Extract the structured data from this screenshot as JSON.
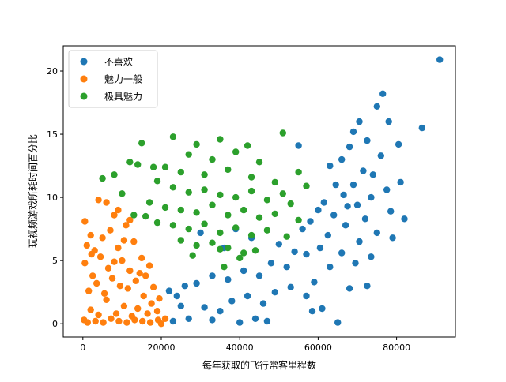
{
  "chart_data": {
    "type": "scatter",
    "title": "",
    "xlabel": "每年获取的飞行常客里程数",
    "ylabel": "玩视频游戏所耗时间百分比",
    "xlim": [
      -5000,
      95000
    ],
    "ylim": [
      -1.05,
      22
    ],
    "x_ticks": [
      0,
      20000,
      40000,
      60000,
      80000
    ],
    "y_ticks": [
      0,
      5,
      10,
      15,
      20
    ],
    "legend_position": "upper-left",
    "grid": false,
    "series": [
      {
        "name": "不喜欢",
        "color": "#1f77b4",
        "points": [
          [
            91000,
            20.9
          ],
          [
            86500,
            15.5
          ],
          [
            76500,
            18.2
          ],
          [
            75000,
            17.2
          ],
          [
            78000,
            16.0
          ],
          [
            70500,
            16.0
          ],
          [
            72500,
            14.5
          ],
          [
            68000,
            14.0
          ],
          [
            80500,
            14.2
          ],
          [
            66000,
            13.0
          ],
          [
            63000,
            12.5
          ],
          [
            74000,
            11.8
          ],
          [
            69000,
            11.0
          ],
          [
            81000,
            11.2
          ],
          [
            66500,
            10.2
          ],
          [
            73500,
            10.0
          ],
          [
            61500,
            9.6
          ],
          [
            70000,
            9.4
          ],
          [
            60000,
            9.0
          ],
          [
            78500,
            8.9
          ],
          [
            64000,
            8.6
          ],
          [
            72000,
            8.3
          ],
          [
            58000,
            8.1
          ],
          [
            82000,
            8.3
          ],
          [
            67000,
            7.8
          ],
          [
            56000,
            7.5
          ],
          [
            75000,
            7.2
          ],
          [
            62500,
            7.0
          ],
          [
            70500,
            6.5
          ],
          [
            79000,
            6.8
          ],
          [
            60500,
            6.0
          ],
          [
            66000,
            5.6
          ],
          [
            73500,
            5.3
          ],
          [
            57000,
            5.5
          ],
          [
            69500,
            4.8
          ],
          [
            63000,
            4.5
          ],
          [
            52000,
            4.5
          ],
          [
            48000,
            4.8
          ],
          [
            55000,
            14.1
          ],
          [
            45000,
            3.8
          ],
          [
            41000,
            4.2
          ],
          [
            37000,
            3.5
          ],
          [
            33000,
            3.8
          ],
          [
            29000,
            3.2
          ],
          [
            26000,
            3.0
          ],
          [
            24000,
            2.2
          ],
          [
            22000,
            2.6
          ],
          [
            25000,
            1.4
          ],
          [
            31000,
            1.3
          ],
          [
            35000,
            1.0
          ],
          [
            38000,
            1.8
          ],
          [
            42000,
            2.2
          ],
          [
            46000,
            1.6
          ],
          [
            49000,
            2.5
          ],
          [
            53000,
            2.9
          ],
          [
            57000,
            2.2
          ],
          [
            59000,
            3.3
          ],
          [
            47000,
            0.2
          ],
          [
            40000,
            0.1
          ],
          [
            44000,
            0.4
          ],
          [
            33000,
            0.3
          ],
          [
            27000,
            0.4
          ],
          [
            23000,
            0.2
          ],
          [
            65000,
            0.1
          ],
          [
            61000,
            1.2
          ],
          [
            68000,
            2.8
          ],
          [
            72500,
            3.0
          ],
          [
            58500,
            1.0
          ],
          [
            36000,
            6.0
          ],
          [
            30000,
            7.2
          ],
          [
            43000,
            6.8
          ],
          [
            50000,
            6.3
          ],
          [
            39000,
            7.5
          ],
          [
            54000,
            5.7
          ],
          [
            71500,
            12.1
          ],
          [
            76000,
            13.3
          ],
          [
            64500,
            11.0
          ],
          [
            67500,
            9.3
          ],
          [
            77500,
            10.6
          ],
          [
            69000,
            15.2
          ]
        ]
      },
      {
        "name": "魅力一般",
        "color": "#ff7f0e",
        "points": [
          [
            500,
            8.1
          ],
          [
            2000,
            7.0
          ],
          [
            4000,
            9.8
          ],
          [
            6000,
            9.6
          ],
          [
            8000,
            8.6
          ],
          [
            1000,
            6.2
          ],
          [
            3000,
            5.8
          ],
          [
            5000,
            6.8
          ],
          [
            7000,
            7.4
          ],
          [
            9000,
            6.0
          ],
          [
            11000,
            7.8
          ],
          [
            13000,
            6.5
          ],
          [
            15000,
            5.2
          ],
          [
            17000,
            4.6
          ],
          [
            12000,
            4.2
          ],
          [
            10000,
            5.0
          ],
          [
            6500,
            4.4
          ],
          [
            2500,
            3.8
          ],
          [
            500,
            4.8
          ],
          [
            1500,
            2.6
          ],
          [
            3500,
            3.2
          ],
          [
            5500,
            2.4
          ],
          [
            7500,
            3.6
          ],
          [
            9500,
            3.0
          ],
          [
            11500,
            2.8
          ],
          [
            13500,
            3.4
          ],
          [
            15500,
            2.2
          ],
          [
            17500,
            1.6
          ],
          [
            19500,
            2.0
          ],
          [
            14000,
            1.2
          ],
          [
            12500,
            0.6
          ],
          [
            10500,
            1.4
          ],
          [
            8500,
            0.8
          ],
          [
            6000,
            1.9
          ],
          [
            4000,
            0.7
          ],
          [
            2000,
            1.1
          ],
          [
            300,
            0.3
          ],
          [
            1200,
            0.1
          ],
          [
            3200,
            0.2
          ],
          [
            5200,
            0.1
          ],
          [
            7200,
            0.4
          ],
          [
            9200,
            0.2
          ],
          [
            11200,
            0.1
          ],
          [
            13200,
            0.3
          ],
          [
            15200,
            0.2
          ],
          [
            17200,
            0.1
          ],
          [
            19200,
            0.3
          ],
          [
            20000,
            0.0
          ],
          [
            16000,
            3.8
          ],
          [
            18000,
            2.9
          ],
          [
            21000,
            0.4
          ],
          [
            19000,
            1.0
          ],
          [
            4500,
            5.3
          ],
          [
            8000,
            4.9
          ],
          [
            2200,
            5.5
          ],
          [
            14500,
            4.0
          ],
          [
            16500,
            0.8
          ],
          [
            9000,
            9.0
          ],
          [
            12000,
            8.2
          ],
          [
            10500,
            6.6
          ]
        ]
      },
      {
        "name": "极具魅力",
        "color": "#2ca02c",
        "points": [
          [
            15000,
            14.3
          ],
          [
            23000,
            14.8
          ],
          [
            29000,
            14.2
          ],
          [
            35000,
            14.6
          ],
          [
            42000,
            14.1
          ],
          [
            51000,
            15.1
          ],
          [
            27000,
            13.4
          ],
          [
            33000,
            13.0
          ],
          [
            39000,
            13.6
          ],
          [
            45000,
            12.8
          ],
          [
            21000,
            12.4
          ],
          [
            25000,
            12.0
          ],
          [
            31000,
            11.8
          ],
          [
            37000,
            12.2
          ],
          [
            43000,
            11.6
          ],
          [
            49000,
            11.2
          ],
          [
            55000,
            12.0
          ],
          [
            57000,
            10.9
          ],
          [
            19000,
            11.3
          ],
          [
            23000,
            10.8
          ],
          [
            27000,
            10.4
          ],
          [
            31000,
            10.6
          ],
          [
            35000,
            10.2
          ],
          [
            39000,
            10.0
          ],
          [
            43000,
            10.5
          ],
          [
            47000,
            9.8
          ],
          [
            51000,
            10.3
          ],
          [
            53000,
            9.5
          ],
          [
            17000,
            9.6
          ],
          [
            21000,
            9.2
          ],
          [
            25000,
            9.0
          ],
          [
            29000,
            8.8
          ],
          [
            33000,
            9.4
          ],
          [
            37000,
            8.6
          ],
          [
            41000,
            9.0
          ],
          [
            45000,
            8.4
          ],
          [
            49000,
            8.7
          ],
          [
            55000,
            8.2
          ],
          [
            13000,
            8.6
          ],
          [
            19000,
            8.0
          ],
          [
            23000,
            7.8
          ],
          [
            27000,
            7.5
          ],
          [
            31000,
            7.9
          ],
          [
            35000,
            7.2
          ],
          [
            39000,
            7.6
          ],
          [
            43000,
            7.0
          ],
          [
            47000,
            7.4
          ],
          [
            52000,
            6.9
          ],
          [
            25000,
            6.6
          ],
          [
            29000,
            6.2
          ],
          [
            33000,
            6.4
          ],
          [
            37000,
            6.0
          ],
          [
            41000,
            5.6
          ],
          [
            44000,
            5.8
          ],
          [
            28000,
            5.4
          ],
          [
            35000,
            5.9
          ],
          [
            5000,
            11.5
          ],
          [
            8000,
            11.8
          ],
          [
            10000,
            10.3
          ],
          [
            12000,
            12.8
          ],
          [
            14000,
            12.6
          ],
          [
            18000,
            12.4
          ],
          [
            16000,
            8.5
          ],
          [
            36000,
            4.5
          ],
          [
            40000,
            5.2
          ]
        ]
      }
    ]
  }
}
